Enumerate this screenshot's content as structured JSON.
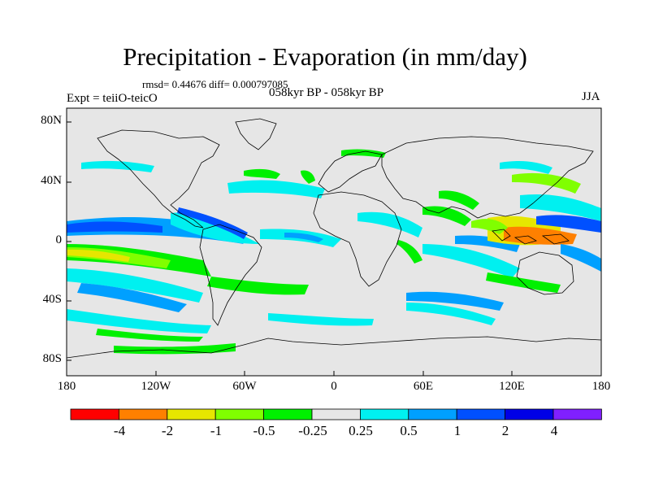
{
  "title": "Precipitation - Evaporation (in mm/day)",
  "stats": "rmsd= 0.44676 diff= 0.000797085",
  "period": "058kyr BP - 058kyr BP",
  "experiment": "Expt = teiiO-teicO",
  "season": "JJA",
  "lat_labels": [
    "80N",
    "40N",
    "0",
    "40S",
    "80S"
  ],
  "lon_labels": [
    "180",
    "120W",
    "60W",
    "0",
    "60E",
    "120E",
    "180"
  ],
  "colorbar": {
    "labels": [
      "-4",
      "-2",
      "-1",
      "-0.5",
      "-0.25",
      "0.25",
      "0.5",
      "1",
      "2",
      "4"
    ],
    "colors": [
      "#ff0000",
      "#ff8000",
      "#e6e600",
      "#80ff00",
      "#00f000",
      "#e6e6e6",
      "#00f0f0",
      "#00a0ff",
      "#0050ff",
      "#0000e6",
      "#8020ff"
    ]
  },
  "map": {
    "background": "#e6e6e6",
    "lon_range": [
      -180,
      180
    ],
    "lat_range": [
      -90,
      90
    ]
  }
}
